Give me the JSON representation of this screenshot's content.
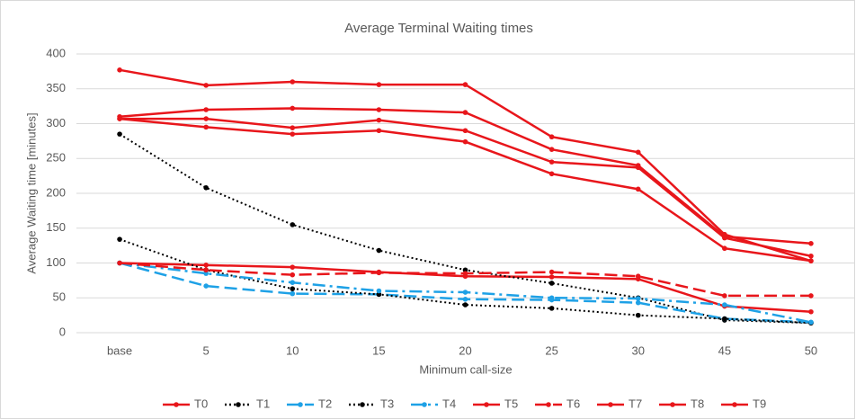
{
  "chart_data": {
    "type": "line",
    "title": "Average Terminal Waiting times",
    "xlabel": "Minimum call-size",
    "ylabel": "Average Waiting time [minutes]",
    "categories": [
      "base",
      "5",
      "10",
      "15",
      "20",
      "25",
      "30",
      "45",
      "50"
    ],
    "ylim": [
      0,
      400
    ],
    "yticks": [
      0,
      50,
      100,
      150,
      200,
      250,
      300,
      350,
      400
    ],
    "grid": true,
    "legend": "bottom",
    "series": [
      {
        "name": "T0",
        "color": "#e8161b",
        "style": "solid",
        "values": [
          100,
          97,
          94,
          87,
          81,
          80,
          77,
          38,
          30
        ]
      },
      {
        "name": "T1",
        "color": "#000000",
        "style": "dotted",
        "values": [
          285,
          208,
          155,
          118,
          90,
          71,
          50,
          18,
          14
        ]
      },
      {
        "name": "T2",
        "color": "#1ea1e6",
        "style": "dashed",
        "values": [
          100,
          67,
          56,
          55,
          48,
          47,
          43,
          20,
          15
        ]
      },
      {
        "name": "T3",
        "color": "#000000",
        "style": "dotted",
        "values": [
          134,
          90,
          63,
          55,
          40,
          35,
          25,
          20,
          14
        ]
      },
      {
        "name": "T4",
        "color": "#1ea1e6",
        "style": "dashdot",
        "values": [
          100,
          85,
          72,
          60,
          58,
          50,
          49,
          40,
          15
        ]
      },
      {
        "name": "T5",
        "color": "#e8161b",
        "style": "solid",
        "values": [
          377,
          355,
          360,
          356,
          356,
          281,
          259,
          141,
          103
        ]
      },
      {
        "name": "T6",
        "color": "#e8161b",
        "style": "dashed",
        "values": [
          100,
          90,
          83,
          86,
          85,
          87,
          81,
          53,
          53
        ]
      },
      {
        "name": "T7",
        "color": "#e8161b",
        "style": "solid",
        "values": [
          310,
          320,
          322,
          320,
          316,
          263,
          240,
          138,
          128
        ]
      },
      {
        "name": "T8",
        "color": "#e8161b",
        "style": "solid",
        "values": [
          307,
          307,
          294,
          305,
          290,
          245,
          237,
          136,
          110
        ]
      },
      {
        "name": "T9",
        "color": "#e8161b",
        "style": "solid",
        "values": [
          307,
          295,
          285,
          290,
          274,
          228,
          206,
          121,
          103
        ]
      }
    ]
  }
}
